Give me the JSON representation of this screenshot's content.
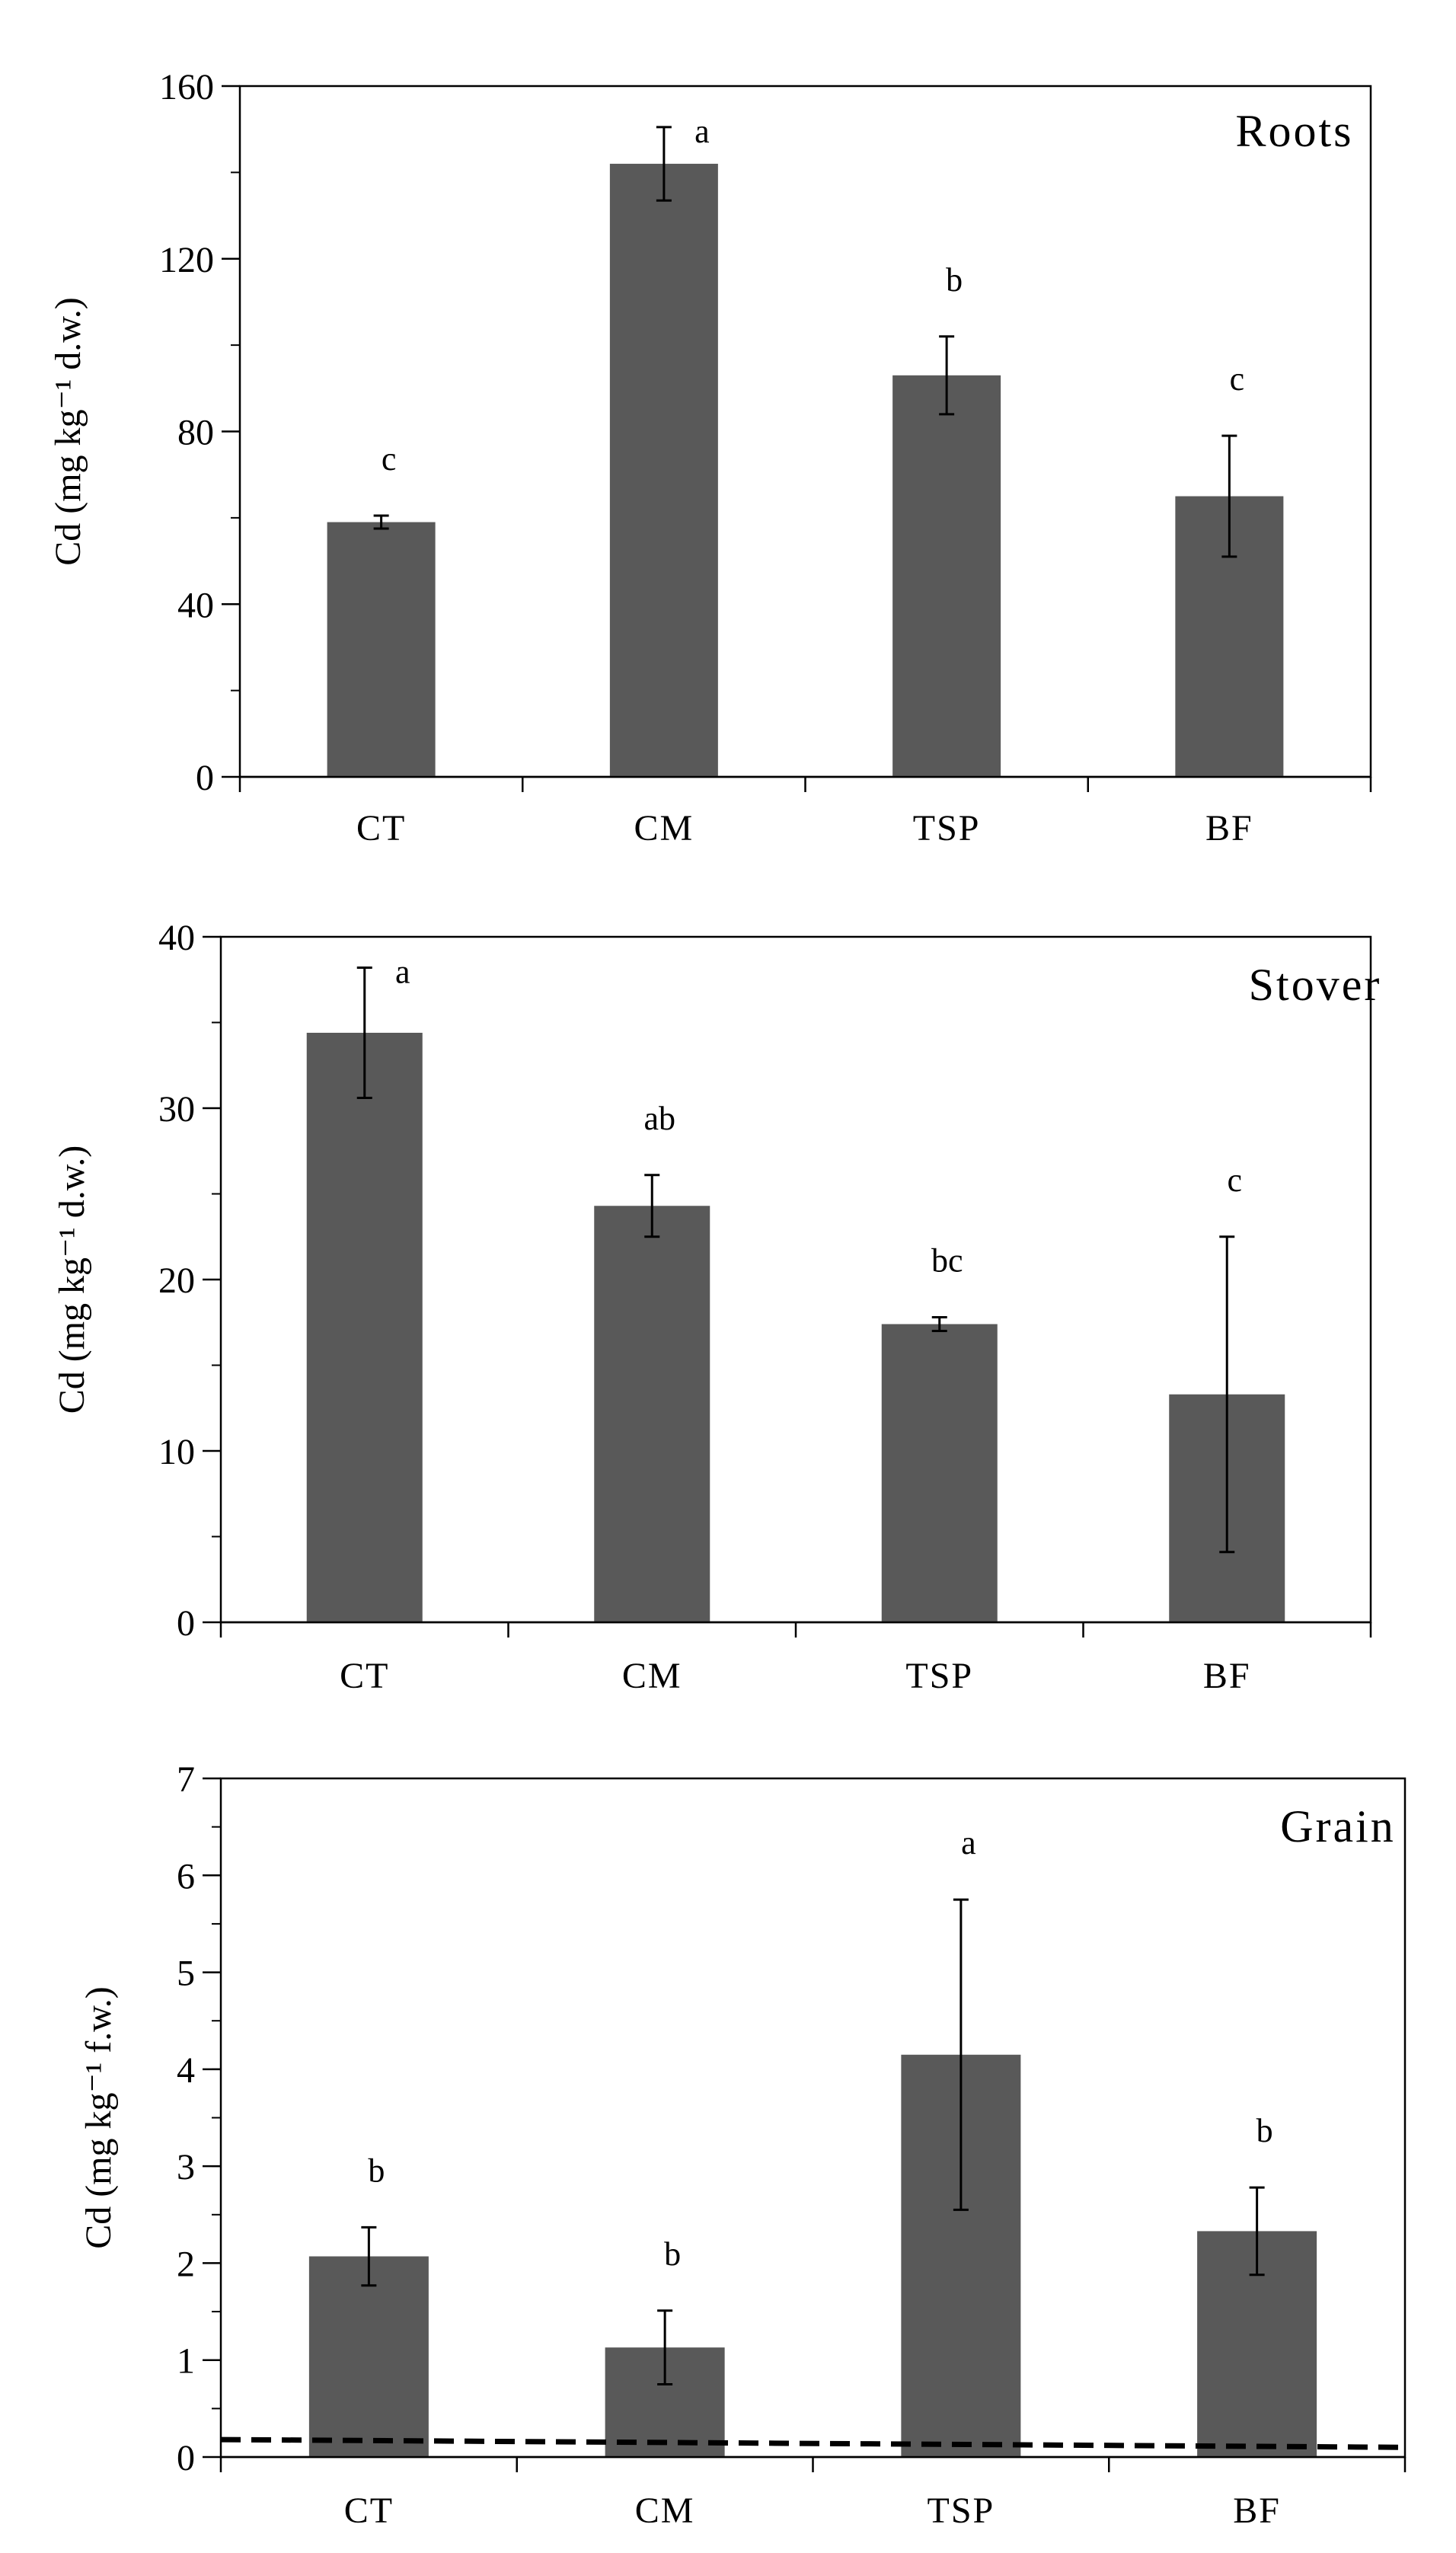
{
  "chart_data": [
    {
      "type": "bar",
      "panel_label": "Roots",
      "ylabel": "Cd (mg kg⁻¹ d.w.)",
      "categories": [
        "CT",
        "CM",
        "TSP",
        "BF"
      ],
      "values": [
        59,
        142,
        93,
        65
      ],
      "errors": [
        1.5,
        8.5,
        9,
        14
      ],
      "letters": [
        "c",
        "a",
        "b",
        "c"
      ],
      "ylim": [
        0,
        160
      ],
      "yticks": [
        0,
        40,
        80,
        120,
        160
      ],
      "ytick_labels": [
        "0",
        "40",
        "80",
        "120",
        "160"
      ],
      "minor_tick_step": 20,
      "bar_color": "#595959"
    },
    {
      "type": "bar",
      "panel_label": "Stover",
      "ylabel": "Cd (mg kg⁻¹ d.w.)",
      "categories": [
        "CT",
        "CM",
        "TSP",
        "BF"
      ],
      "values": [
        34.4,
        24.3,
        17.4,
        13.3
      ],
      "errors": [
        3.8,
        1.8,
        0.4,
        9.2
      ],
      "letters": [
        "a",
        "ab",
        "bc",
        "c"
      ],
      "ylim": [
        0,
        40
      ],
      "yticks": [
        0,
        10,
        20,
        30,
        40
      ],
      "ytick_labels": [
        "0",
        "10",
        "20",
        "30",
        "40"
      ],
      "minor_tick_step": 5,
      "bar_color": "#595959"
    },
    {
      "type": "bar",
      "panel_label": "Grain",
      "ylabel": "Cd (mg kg⁻¹ f.w.)",
      "categories": [
        "CT",
        "CM",
        "TSP",
        "BF"
      ],
      "values": [
        2.07,
        1.13,
        4.15,
        2.33
      ],
      "errors": [
        0.3,
        0.38,
        1.6,
        0.45
      ],
      "letters": [
        "b",
        "b",
        "a",
        "b"
      ],
      "ylim": [
        0,
        7
      ],
      "yticks": [
        0,
        1,
        2,
        3,
        4,
        5,
        6,
        7
      ],
      "ytick_labels": [
        "0",
        "1",
        "2",
        "3",
        "4",
        "5",
        "6",
        "7"
      ],
      "minor_tick_step": 0.5,
      "bar_color": "#595959",
      "reference_line": {
        "start": 0.18,
        "end": 0.1,
        "style": "dashed"
      }
    }
  ]
}
